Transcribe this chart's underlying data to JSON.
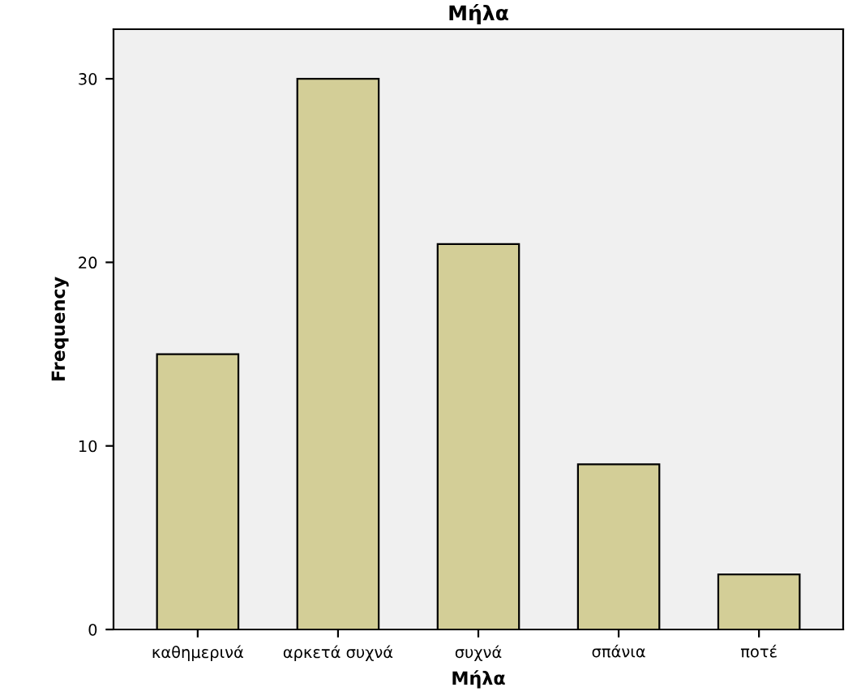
{
  "chart_data": {
    "type": "bar",
    "title": "Μήλα",
    "xlabel": "Μήλα",
    "ylabel": "Frequency",
    "categories": [
      "καθημερινά",
      "αρκετά συχνά",
      "συχνά",
      "σπάνια",
      "ποτέ"
    ],
    "values": [
      15,
      30,
      21,
      9,
      3
    ],
    "color": "#d3ce97",
    "ylim": [
      0,
      32.7
    ],
    "yticks": [
      0,
      10,
      20,
      30
    ],
    "grid": false,
    "legend": false
  }
}
